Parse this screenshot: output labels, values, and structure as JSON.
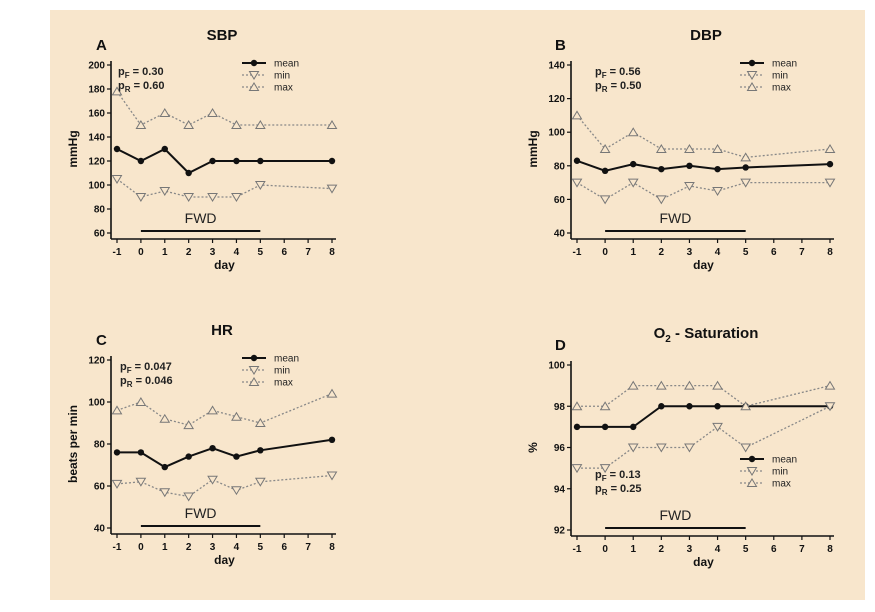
{
  "chart_data": [
    {
      "type": "line",
      "letter": "A",
      "title": "SBP",
      "ylabel": "mmHg",
      "xlabel": "day",
      "ylim": [
        60,
        200
      ],
      "yticks": [
        60,
        80,
        100,
        120,
        140,
        160,
        180,
        200
      ],
      "xticks": [
        -1,
        0,
        1,
        2,
        3,
        4,
        5,
        6,
        7,
        8
      ],
      "x": [
        -1,
        0,
        1,
        2,
        3,
        4,
        5,
        8
      ],
      "series": [
        {
          "name": "mean",
          "values": [
            130,
            120,
            130,
            110,
            120,
            120,
            120,
            120
          ]
        },
        {
          "name": "min",
          "values": [
            105,
            90,
            95,
            90,
            90,
            90,
            100,
            97
          ]
        },
        {
          "name": "max",
          "values": [
            178,
            150,
            160,
            150,
            160,
            150,
            150,
            150
          ]
        }
      ],
      "stats": [
        "pF = 0.30",
        "pR = 0.60"
      ],
      "annotation": {
        "label": "FWD",
        "from": 0,
        "to": 5
      }
    },
    {
      "type": "line",
      "letter": "B",
      "title": "DBP",
      "ylabel": "mmHg",
      "xlabel": "day",
      "ylim": [
        40,
        140
      ],
      "yticks": [
        40,
        60,
        80,
        100,
        120,
        140
      ],
      "xticks": [
        -1,
        0,
        1,
        2,
        3,
        4,
        5,
        6,
        7,
        8
      ],
      "x": [
        -1,
        0,
        1,
        2,
        3,
        4,
        5,
        8
      ],
      "series": [
        {
          "name": "mean",
          "values": [
            83,
            77,
            81,
            78,
            80,
            78,
            79,
            81
          ]
        },
        {
          "name": "min",
          "values": [
            70,
            60,
            70,
            60,
            68,
            65,
            70,
            70
          ]
        },
        {
          "name": "max",
          "values": [
            110,
            90,
            100,
            90,
            90,
            90,
            85,
            90
          ]
        }
      ],
      "stats": [
        "pF = 0.56",
        "pR = 0.50"
      ],
      "annotation": {
        "label": "FWD",
        "from": 0,
        "to": 5
      }
    },
    {
      "type": "line",
      "letter": "C",
      "title": "HR",
      "ylabel": "beats per min",
      "xlabel": "day",
      "ylim": [
        40,
        120
      ],
      "yticks": [
        40,
        60,
        80,
        100,
        120
      ],
      "xticks": [
        -1,
        0,
        1,
        2,
        3,
        4,
        5,
        6,
        7,
        8
      ],
      "x": [
        -1,
        0,
        1,
        2,
        3,
        4,
        5,
        8
      ],
      "series": [
        {
          "name": "mean",
          "values": [
            76,
            76,
            69,
            74,
            78,
            74,
            77,
            82
          ]
        },
        {
          "name": "min",
          "values": [
            61,
            62,
            57,
            55,
            63,
            58,
            62,
            65
          ]
        },
        {
          "name": "max",
          "values": [
            96,
            100,
            92,
            89,
            96,
            93,
            90,
            104
          ]
        }
      ],
      "stats": [
        "pF = 0.047",
        "pR = 0.046"
      ],
      "annotation": {
        "label": "FWD",
        "from": 0,
        "to": 5
      }
    },
    {
      "type": "line",
      "letter": "D",
      "title": "O2 - Saturation",
      "title_main": "O",
      "title_sub": "2",
      "title_rest": " - Saturation",
      "ylabel": "%",
      "xlabel": "day",
      "ylim": [
        92,
        100
      ],
      "yticks": [
        92,
        94,
        96,
        98,
        100
      ],
      "xticks": [
        -1,
        0,
        1,
        2,
        3,
        4,
        5,
        6,
        7,
        8
      ],
      "x": [
        -1,
        0,
        1,
        2,
        3,
        4,
        5,
        8
      ],
      "series": [
        {
          "name": "mean",
          "values": [
            97,
            97,
            97,
            98,
            98,
            98,
            98,
            98
          ]
        },
        {
          "name": "min",
          "values": [
            95,
            95,
            96,
            96,
            96,
            97,
            96,
            98
          ]
        },
        {
          "name": "max",
          "values": [
            98,
            98,
            99,
            99,
            99,
            99,
            98,
            99
          ]
        }
      ],
      "stats": [
        "pF = 0.13",
        "pR = 0.25"
      ],
      "annotation": {
        "label": "FWD",
        "from": 0,
        "to": 5
      }
    }
  ]
}
